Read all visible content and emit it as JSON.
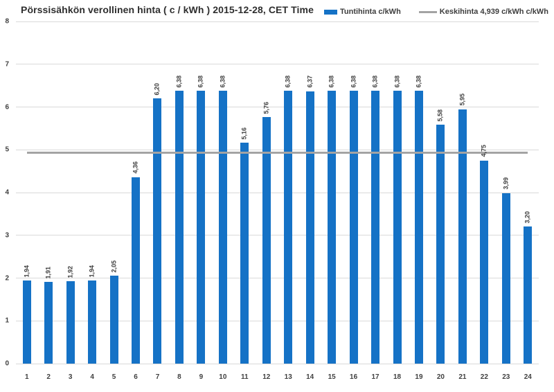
{
  "chart": {
    "title": "Pörssisähkön verollinen hinta ( c / kWh ) 2015-12-28, CET Time",
    "legend": [
      {
        "label": "Tuntihinta c/kWh",
        "swatch": "bar",
        "color": "#1572c6"
      },
      {
        "label": "Keskihinta 4,939 c/kWh c/kWh",
        "swatch": "line",
        "color": "#a3a3a3"
      }
    ]
  },
  "chart_data": {
    "type": "bar",
    "title": "Pörssisähkön verollinen hinta ( c / kWh ) 2015-12-28, CET Time",
    "categories": [
      "1",
      "2",
      "3",
      "4",
      "5",
      "6",
      "7",
      "8",
      "9",
      "10",
      "11",
      "12",
      "13",
      "14",
      "15",
      "16",
      "17",
      "18",
      "19",
      "20",
      "21",
      "22",
      "23",
      "24"
    ],
    "series": [
      {
        "name": "Tuntihinta c/kWh",
        "type": "bar",
        "color": "#1572c6",
        "values": [
          1.94,
          1.91,
          1.92,
          1.94,
          2.05,
          4.36,
          6.2,
          6.38,
          6.38,
          6.38,
          5.16,
          5.76,
          6.38,
          6.37,
          6.38,
          6.38,
          6.38,
          6.38,
          6.38,
          5.58,
          5.95,
          4.75,
          3.99,
          3.2
        ]
      },
      {
        "name": "Keskihinta 4,939 c/kWh c/kWh",
        "type": "line",
        "color": "#a3a3a3",
        "value": 4.939
      }
    ],
    "value_labels": [
      "1,94",
      "1,91",
      "1,92",
      "1,94",
      "2,05",
      "4,36",
      "6,20",
      "6,38",
      "6,38",
      "6,38",
      "5,16",
      "5,76",
      "6,38",
      "6,37",
      "6,38",
      "6,38",
      "6,38",
      "6,38",
      "6,38",
      "5,58",
      "5,95",
      "4,75",
      "3,99",
      "3,20"
    ],
    "xlabel": "",
    "ylabel": "",
    "ylim": [
      0,
      8
    ],
    "ytick_step": 1,
    "grid": true,
    "legend_position": "top-right",
    "average_line": 4.939,
    "colors": {
      "bar": "#1572c6",
      "average_line": "#a3a3a3",
      "gridline": "#d9d9d9",
      "text": "#404040"
    }
  }
}
